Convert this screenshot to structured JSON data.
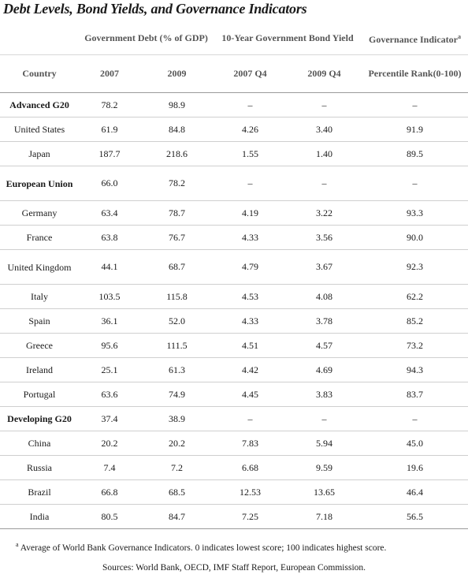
{
  "title": "Debt Levels, Bond Yields, and Governance Indicators",
  "header": {
    "debt": "Government Debt (% of GDP)",
    "bond": "10-Year Government Bond Yield",
    "gov": "Governance Indicator",
    "gov_mark": "a",
    "country": "Country",
    "y2007": "2007",
    "y2009": "2009",
    "q2007": "2007 Q4",
    "q2009": "2009 Q4",
    "rank": "Percentile Rank(0-100)"
  },
  "rows": [
    {
      "country": "Advanced G20",
      "group": true,
      "d2007": "78.2",
      "d2009": "98.9",
      "b2007": "–",
      "b2009": "–",
      "gov": "–"
    },
    {
      "country": "United States",
      "group": false,
      "d2007": "61.9",
      "d2009": "84.8",
      "b2007": "4.26",
      "b2009": "3.40",
      "gov": "91.9"
    },
    {
      "country": "Japan",
      "group": false,
      "d2007": "187.7",
      "d2009": "218.6",
      "b2007": "1.55",
      "b2009": "1.40",
      "gov": "89.5"
    },
    {
      "country": "European Union",
      "group": true,
      "d2007": "66.0",
      "d2009": "78.2",
      "b2007": "–",
      "b2009": "–",
      "gov": "–"
    },
    {
      "country": "Germany",
      "group": false,
      "d2007": "63.4",
      "d2009": "78.7",
      "b2007": "4.19",
      "b2009": "3.22",
      "gov": "93.3"
    },
    {
      "country": "France",
      "group": false,
      "d2007": "63.8",
      "d2009": "76.7",
      "b2007": "4.33",
      "b2009": "3.56",
      "gov": "90.0"
    },
    {
      "country": "United Kingdom",
      "group": false,
      "d2007": "44.1",
      "d2009": "68.7",
      "b2007": "4.79",
      "b2009": "3.67",
      "gov": "92.3"
    },
    {
      "country": "Italy",
      "group": false,
      "d2007": "103.5",
      "d2009": "115.8",
      "b2007": "4.53",
      "b2009": "4.08",
      "gov": "62.2"
    },
    {
      "country": "Spain",
      "group": false,
      "d2007": "36.1",
      "d2009": "52.0",
      "b2007": "4.33",
      "b2009": "3.78",
      "gov": "85.2"
    },
    {
      "country": "Greece",
      "group": false,
      "d2007": "95.6",
      "d2009": "111.5",
      "b2007": "4.51",
      "b2009": "4.57",
      "gov": "73.2"
    },
    {
      "country": "Ireland",
      "group": false,
      "d2007": "25.1",
      "d2009": "61.3",
      "b2007": "4.42",
      "b2009": "4.69",
      "gov": "94.3"
    },
    {
      "country": "Portugal",
      "group": false,
      "d2007": "63.6",
      "d2009": "74.9",
      "b2007": "4.45",
      "b2009": "3.83",
      "gov": "83.7"
    },
    {
      "country": "Developing G20",
      "group": true,
      "d2007": "37.4",
      "d2009": "38.9",
      "b2007": "–",
      "b2009": "–",
      "gov": "–"
    },
    {
      "country": "China",
      "group": false,
      "d2007": "20.2",
      "d2009": "20.2",
      "b2007": "7.83",
      "b2009": "5.94",
      "gov": "45.0"
    },
    {
      "country": "Russia",
      "group": false,
      "d2007": "7.4",
      "d2009": "7.2",
      "b2007": "6.68",
      "b2009": "9.59",
      "gov": "19.6"
    },
    {
      "country": "Brazil",
      "group": false,
      "d2007": "66.8",
      "d2009": "68.5",
      "b2007": "12.53",
      "b2009": "13.65",
      "gov": "46.4"
    },
    {
      "country": "India",
      "group": false,
      "d2007": "80.5",
      "d2009": "84.7",
      "b2007": "7.25",
      "b2009": "7.18",
      "gov": "56.5"
    }
  ],
  "footnote": {
    "mark": "a",
    "text": " Average of World Bank Governance Indicators. 0 indicates lowest score; 100 indicates highest score."
  },
  "sources": "Sources: World Bank, OECD, IMF Staff Report, European Commission."
}
